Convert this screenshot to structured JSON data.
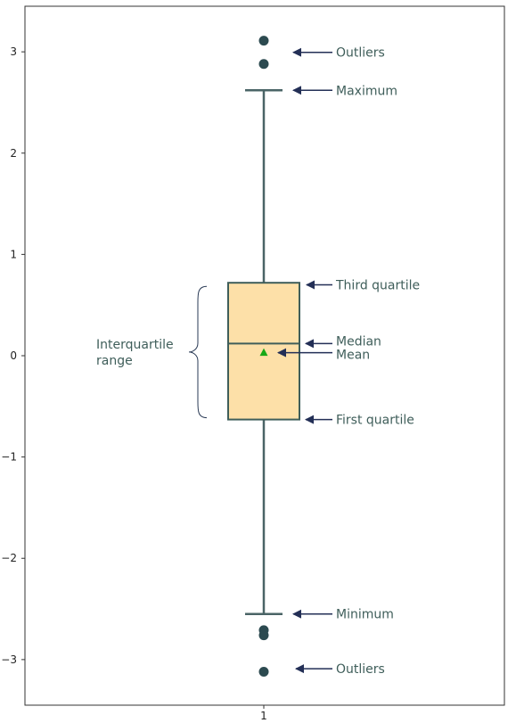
{
  "chart_data": {
    "type": "box",
    "title": "",
    "xlabel": "",
    "ylabel": "",
    "categories": [
      "1"
    ],
    "ylim": [
      -3.45,
      3.45
    ],
    "yticks": [
      -3,
      -2,
      -1,
      0,
      1,
      2,
      3
    ],
    "ytick_labels": [
      "−3",
      "−2",
      "−1",
      "0",
      "1",
      "2",
      "3"
    ],
    "grid": false,
    "box": {
      "minimum": -2.55,
      "first_quartile": -0.63,
      "median": 0.12,
      "mean": 0.03,
      "third_quartile": 0.72,
      "maximum": 2.62,
      "outliers": [
        3.11,
        2.88,
        -2.71,
        -2.76,
        -3.12
      ]
    },
    "annotations": [
      {
        "key": "outliers_top",
        "text": "Outliers"
      },
      {
        "key": "maximum",
        "text": "Maximum"
      },
      {
        "key": "third_quartile",
        "text": "Third quartile"
      },
      {
        "key": "median",
        "text": "Median"
      },
      {
        "key": "mean",
        "text": "Mean"
      },
      {
        "key": "first_quartile",
        "text": "First quartile"
      },
      {
        "key": "minimum",
        "text": "Minimum"
      },
      {
        "key": "outliers_bottom",
        "text": "Outliers"
      }
    ],
    "iqr_label": [
      "Interquartile",
      "range"
    ]
  },
  "colors": {
    "box_fill": "#fde0a8",
    "box_edge": "#3f5e5a",
    "whisker": "#4a6466",
    "outlier": "#2c4a50",
    "mean_marker": "#17a817",
    "arrow": "#232f56",
    "annotation_text": "#3f5e5a",
    "axis": "#333333"
  }
}
